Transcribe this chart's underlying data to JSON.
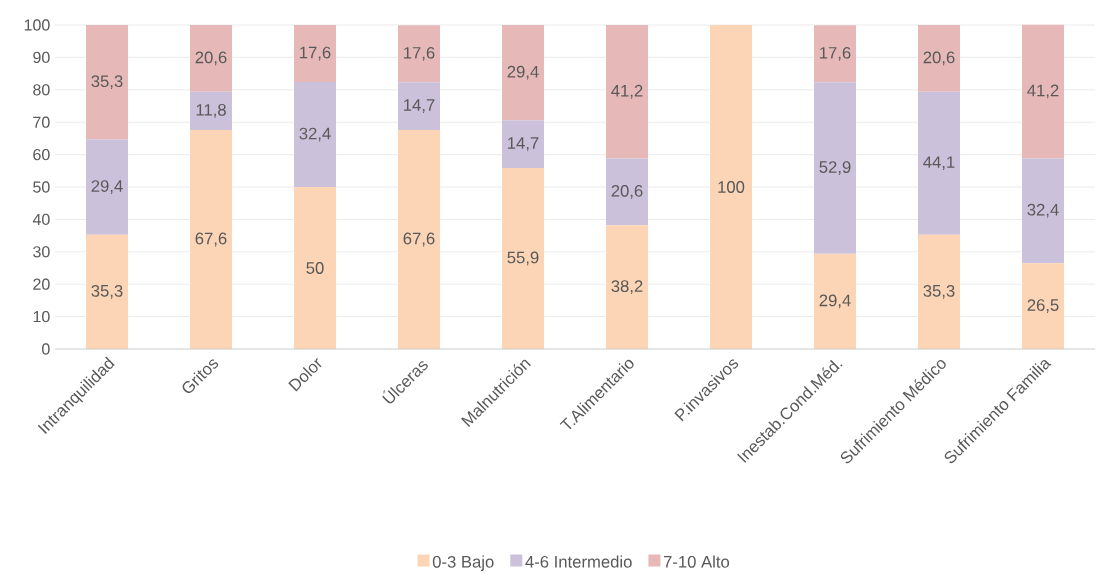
{
  "chart_data": {
    "type": "bar",
    "stacked": true,
    "categories": [
      "Intranquilidad",
      "Gritos",
      "Dolor",
      "Úlceras",
      "Malnutrición",
      "T.Alimentario",
      "P.invasivos",
      "Inestab.Cond.Méd.",
      "Sufrimiento Médico",
      "Sufrimiento Familia"
    ],
    "series": [
      {
        "name": "0-3 Bajo",
        "color": "#fbd5b5",
        "values": [
          35.3,
          67.6,
          50,
          67.6,
          55.9,
          38.2,
          100,
          29.4,
          35.3,
          26.5
        ],
        "value_labels": [
          "35,3",
          "67,6",
          "50",
          "67,6",
          "55,9",
          "38,2",
          "100",
          "29,4",
          "35,3",
          "26,5"
        ]
      },
      {
        "name": "4-6 Intermedio",
        "color": "#ccc1da",
        "values": [
          29.4,
          11.8,
          32.4,
          14.7,
          14.7,
          20.6,
          0,
          52.9,
          44.1,
          32.4
        ],
        "value_labels": [
          "29,4",
          "11,8",
          "32,4",
          "14,7",
          "14,7",
          "20,6",
          null,
          "52,9",
          "44,1",
          "32,4"
        ]
      },
      {
        "name": "7-10 Alto",
        "color": "#e6b9b8",
        "values": [
          35.3,
          20.6,
          17.6,
          17.6,
          29.4,
          41.2,
          0,
          17.6,
          20.6,
          41.2
        ],
        "value_labels": [
          "35,3",
          "20,6",
          "17,6",
          "17,6",
          "29,4",
          "41,2",
          null,
          "17,6",
          "20,6",
          "41,2"
        ]
      }
    ],
    "ylim": [
      0,
      100
    ],
    "yticks": [
      0,
      10,
      20,
      30,
      40,
      50,
      60,
      70,
      80,
      90,
      100
    ],
    "grid": "y",
    "legend": "bottom"
  }
}
